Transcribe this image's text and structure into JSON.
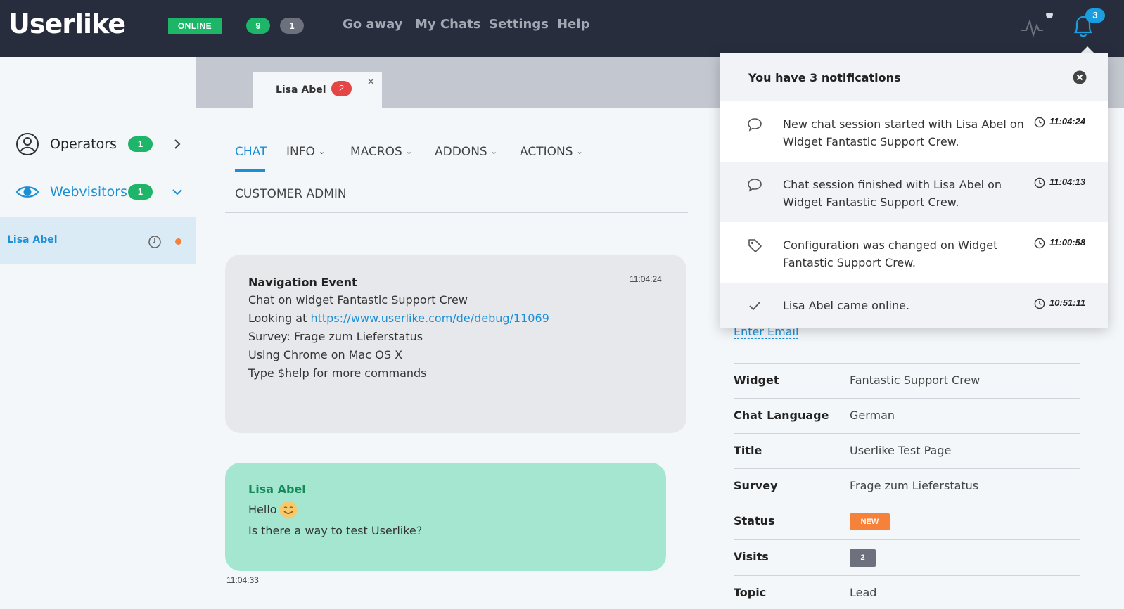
{
  "header": {
    "logo": "Userlike",
    "status": "ONLINE",
    "active_count": "9",
    "waiting_count": "1",
    "nav": [
      "Go away",
      "My Chats",
      "Settings",
      "Help"
    ],
    "notification_count": "3"
  },
  "sidebar": {
    "operators": {
      "label": "Operators",
      "count": "1"
    },
    "webvisitors": {
      "label": "Webvisitors",
      "count": "1"
    },
    "visitor": {
      "name": "Lisa Abel"
    }
  },
  "chat_tab": {
    "name": "Lisa Abel",
    "count": "2",
    "close": "×"
  },
  "chat_tabs": [
    "CHAT",
    "INFO",
    "MACROS",
    "ADDONS",
    "ACTIONS",
    "CUSTOMER ADMIN"
  ],
  "nav_event": {
    "title": "Navigation Event",
    "time": "11:04:24",
    "line1": "Chat on widget Fantastic Support Crew",
    "line2_prefix": "Looking at ",
    "line2_link": "https://www.userlike.com/de/debug/11069",
    "line3": "Survey: Frage zum Lieferstatus",
    "line4": "Using Chrome on Mac OS X",
    "line5": "Type $help for more commands"
  },
  "user_message": {
    "author": "Lisa Abel",
    "line1": "Hello",
    "line2": "Is there a way to test Userlike?",
    "time": "11:04:33"
  },
  "info": {
    "enter_email": "Enter Email",
    "rows": [
      {
        "key": "Widget",
        "value": "Fantastic Support Crew"
      },
      {
        "key": "Chat Language",
        "value": "German"
      },
      {
        "key": "Title",
        "value": "Userlike Test Page"
      },
      {
        "key": "Survey",
        "value": "Frage zum Lieferstatus"
      },
      {
        "key": "Status",
        "value": "NEW"
      },
      {
        "key": "Visits",
        "value": "2"
      },
      {
        "key": "Topic",
        "value": "Lead"
      }
    ]
  },
  "notifications": {
    "title": "You have 3 notifications",
    "items": [
      {
        "icon": "chat-bubble-icon",
        "text": "New chat session started with Lisa Abel on Widget Fantastic Support Crew.",
        "time": "11:04:24"
      },
      {
        "icon": "chat-bubble-icon",
        "text": "Chat session finished with Lisa Abel on Widget Fantastic Support Crew.",
        "time": "11:04:13"
      },
      {
        "icon": "tag-icon",
        "text": "Configuration was changed on Widget Fantastic Support Crew.",
        "time": "11:00:58"
      },
      {
        "icon": "checkmark-icon",
        "text": "Lisa Abel came online.",
        "time": "10:51:11"
      }
    ]
  },
  "colors": {
    "topbar": "#272d3c",
    "green": "#1db567",
    "blue": "#1a8fd6",
    "orange": "#f5813b",
    "red": "#e64545",
    "user_bubble": "#a4e6cf"
  }
}
